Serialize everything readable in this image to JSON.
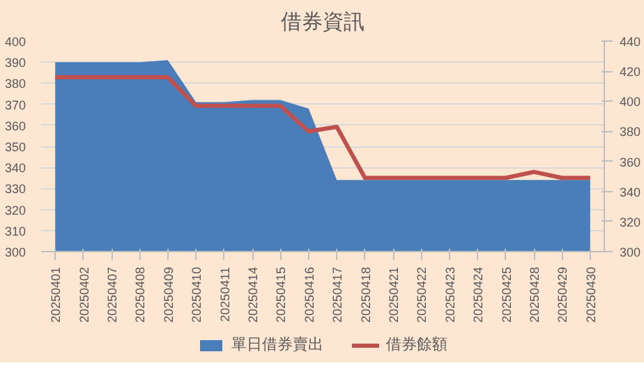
{
  "chart_data": {
    "type": "area",
    "title": "借券資訊",
    "categories": [
      "20250401",
      "20250402",
      "20250407",
      "20250408",
      "20250409",
      "20250410",
      "20250411",
      "20250414",
      "20250415",
      "20250416",
      "20250417",
      "20250418",
      "20250421",
      "20250422",
      "20250423",
      "20250424",
      "20250425",
      "20250428",
      "20250429",
      "20250430"
    ],
    "series": [
      {
        "name": "單日借券賣出",
        "color": "#4a7ebb",
        "values": [
          390,
          390,
          390,
          390,
          391,
          371,
          371,
          372,
          372,
          368,
          334,
          334,
          334,
          334,
          334,
          334,
          334,
          334,
          334,
          334
        ]
      },
      {
        "name": "借券餘額",
        "type": "line",
        "axis": "y2",
        "color": "#c0504d",
        "values": [
          416,
          416,
          416,
          416,
          416,
          397,
          397,
          397,
          397,
          380,
          383,
          349,
          349,
          349,
          349,
          349,
          349,
          353,
          349,
          349
        ]
      }
    ],
    "ylim": [
      300,
      400
    ],
    "yticks": [
      300,
      310,
      320,
      330,
      340,
      350,
      360,
      370,
      380,
      390,
      400
    ],
    "y2lim": [
      300,
      440
    ],
    "y2ticks": [
      300,
      320,
      340,
      360,
      380,
      400,
      420,
      440
    ],
    "grid": "y",
    "legend": "bottom",
    "marker": "none",
    "line_style": "solid"
  }
}
